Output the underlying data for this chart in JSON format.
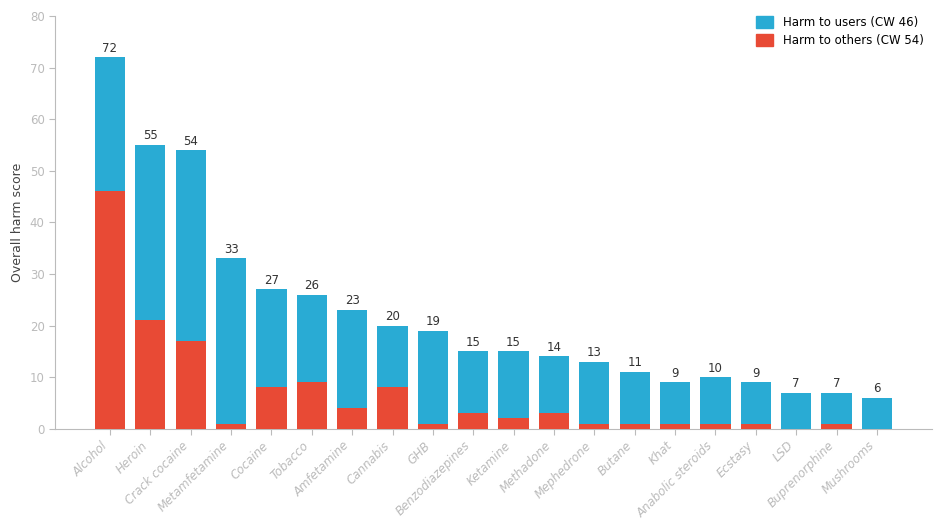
{
  "categories": [
    "Alcohol",
    "Heroin",
    "Crack cocaine",
    "Metamfetamine",
    "Cocaine",
    "Tobacco",
    "Amfetamine",
    "Cannabis",
    "GHB",
    "Benzodiazepines",
    "Ketamine",
    "Methadone",
    "Mephedrone",
    "Butane",
    "Khat",
    "Anabolic steroids",
    "Ecstasy",
    "LSD",
    "Buprenorphine",
    "Mushrooms"
  ],
  "totals": [
    72,
    55,
    54,
    33,
    27,
    26,
    23,
    20,
    19,
    15,
    15,
    14,
    13,
    11,
    9,
    10,
    9,
    7,
    7,
    6
  ],
  "harm_to_others": [
    46,
    21,
    17,
    1,
    8,
    9,
    4,
    8,
    1,
    3,
    2,
    3,
    1,
    1,
    1,
    1,
    1,
    0,
    1,
    0
  ],
  "color_users": "#29ABD4",
  "color_others": "#E84A35",
  "ylabel": "Overall harm score",
  "ylim": [
    0,
    80
  ],
  "yticks": [
    0,
    10,
    20,
    30,
    40,
    50,
    60,
    70,
    80
  ],
  "legend_users": "Harm to users (CW 46)",
  "legend_others": "Harm to others (CW 54)",
  "background_color": "#FFFFFF",
  "label_fontsize": 8.5,
  "ylabel_fontsize": 9,
  "tick_fontsize": 8.5,
  "bar_width": 0.75
}
